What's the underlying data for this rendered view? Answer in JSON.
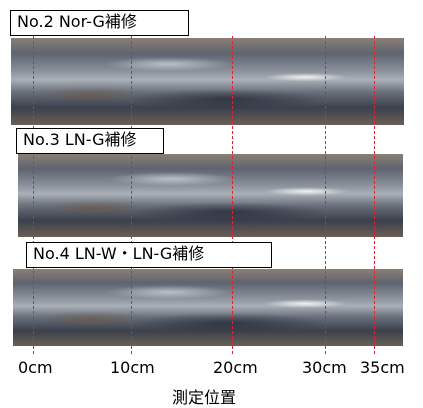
{
  "panels": [
    {
      "label": "No.2  Nor-G補修"
    },
    {
      "label": "No.3  LN-G補修"
    },
    {
      "label": "No.4  LN-W・LN-G補修"
    }
  ],
  "axis": {
    "ticks": [
      "0cm",
      "10cm",
      "20cm",
      "30cm",
      "35cm"
    ],
    "title": "測定位置"
  },
  "colors": {
    "marker_line": "#e8202a"
  }
}
